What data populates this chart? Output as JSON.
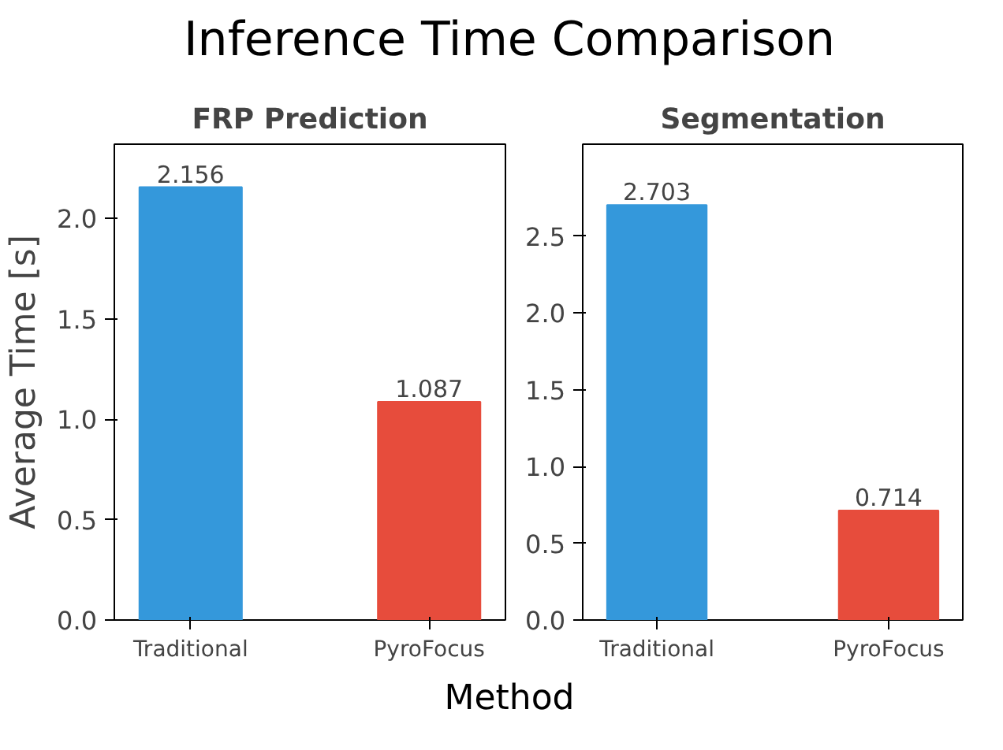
{
  "chart_data": [
    {
      "type": "bar",
      "title": "Inference Time Comparison",
      "subtitle": "FRP Prediction",
      "xlabel": "Method",
      "ylabel": "Average Time [s]",
      "categories": [
        "Traditional",
        "PyroFocus"
      ],
      "values": [
        2.156,
        1.087
      ],
      "colors": [
        "#3498db",
        "#e74c3c"
      ],
      "ylim": [
        0,
        2.37
      ],
      "yticks": [
        {
          "value": 0,
          "label": "0.0"
        },
        {
          "value": 0.5,
          "label": "0.5"
        },
        {
          "value": 1,
          "label": "1.0"
        },
        {
          "value": 1.5,
          "label": "1.5"
        },
        {
          "value": 2,
          "label": "2.0"
        }
      ],
      "data_labels": true,
      "grid": false
    },
    {
      "type": "bar",
      "subtitle": "Segmentation",
      "categories": [
        "Traditional",
        "PyroFocus"
      ],
      "values": [
        2.703,
        0.714
      ],
      "colors": [
        "#3498db",
        "#e74c3c"
      ],
      "ylim": [
        0,
        3.1
      ],
      "yticks": [
        {
          "value": 0,
          "label": "0.0"
        },
        {
          "value": 0.5,
          "label": "0.5"
        },
        {
          "value": 1,
          "label": "1.0"
        },
        {
          "value": 1.5,
          "label": "1.5"
        },
        {
          "value": 2,
          "label": "2.0"
        },
        {
          "value": 2.5,
          "label": "2.5"
        }
      ],
      "data_labels": true,
      "grid": false
    }
  ]
}
